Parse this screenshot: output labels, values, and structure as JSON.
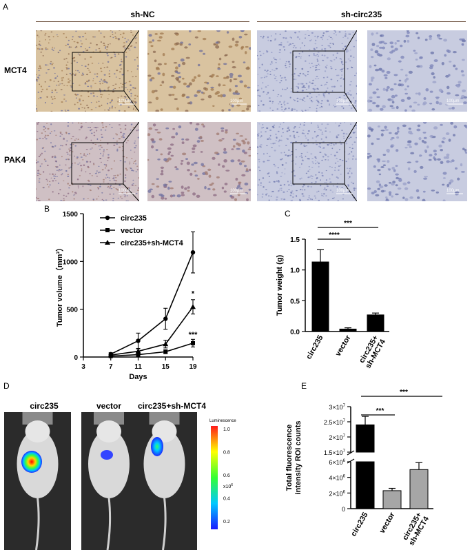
{
  "panel_a": {
    "letter": "A",
    "groups": [
      "sh-NC",
      "sh-circ235"
    ],
    "rows": [
      "MCT4",
      "PAK4"
    ],
    "scale_label": "100µm"
  },
  "panel_b": {
    "letter": "B"
  },
  "panel_c": {
    "letter": "C"
  },
  "panel_d": {
    "letter": "D",
    "mice": [
      "circ235",
      "vector",
      "circ235+sh-MCT4"
    ],
    "colorbar_title": "Luminescence",
    "colorbar_ticks": [
      "1.0",
      "0.8",
      "0.6",
      "0.4",
      "0.2"
    ],
    "colorbar_unit": "x10",
    "colorbar_exp": "6"
  },
  "panel_e": {
    "letter": "E"
  },
  "colors": {
    "black": "#000000",
    "grey": "#a6a6a6",
    "stain_brown": "#b08a5a",
    "stain_blue": "#8a93c2"
  },
  "chart_data": [
    {
      "id": "B",
      "type": "line",
      "xlabel": "Days",
      "ylabel": "Tumor volume（mm³）",
      "xlim": [
        3,
        19
      ],
      "ylim": [
        0,
        1500
      ],
      "xticks": [
        "3",
        "7",
        "11",
        "15",
        "19"
      ],
      "yticks": [
        "0",
        "500",
        "1000",
        "1500"
      ],
      "x": [
        7,
        11,
        15,
        19
      ],
      "series": [
        {
          "name": "circ235",
          "marker": "circle",
          "values": [
            30,
            170,
            400,
            1095
          ],
          "errors": [
            15,
            80,
            110,
            215
          ]
        },
        {
          "name": "vector",
          "marker": "square",
          "values": [
            10,
            25,
            55,
            145
          ],
          "errors": [
            5,
            15,
            20,
            40
          ]
        },
        {
          "name": "circ235+sh-MCT4",
          "marker": "triangle",
          "values": [
            20,
            60,
            135,
            525
          ],
          "errors": [
            8,
            25,
            40,
            75
          ]
        }
      ],
      "annotations": [
        {
          "x": 19,
          "y": 640,
          "text": "*"
        },
        {
          "x": 19,
          "y": 210,
          "text": "***"
        }
      ],
      "legend": "top-left"
    },
    {
      "id": "C",
      "type": "bar",
      "ylabel": "Tumor weight (g)",
      "ylim": [
        0,
        1.5
      ],
      "yticks": [
        "0.0",
        "0.5",
        "1.0",
        "1.5"
      ],
      "categories": [
        "circ235",
        "vector",
        "circ235+\nsh-MCT4"
      ],
      "category_lines": [
        [
          "circ235"
        ],
        [
          "vector"
        ],
        [
          "circ235+",
          "sh-MCT4"
        ]
      ],
      "values": [
        1.13,
        0.04,
        0.27
      ],
      "errors": [
        0.2,
        0.02,
        0.03
      ],
      "colors": [
        "#000000",
        "#000000",
        "#000000"
      ],
      "significance": [
        {
          "from": 0,
          "to": 1,
          "text": "****"
        },
        {
          "from": 0,
          "to": 2,
          "text": "***"
        }
      ]
    },
    {
      "id": "E",
      "type": "bar",
      "ylabel_lines": [
        "Total fluorescence",
        "intensity ROI counts"
      ],
      "broken_axis": true,
      "lower_range": [
        0,
        6000000
      ],
      "upper_range": [
        15000000,
        30000000
      ],
      "lower_ticks": [
        {
          "v": 0,
          "m": "0",
          "e": ""
        },
        {
          "v": 2000000,
          "m": "2×10",
          "e": "6"
        },
        {
          "v": 4000000,
          "m": "4×10",
          "e": "6"
        },
        {
          "v": 6000000,
          "m": "6×10",
          "e": "6"
        }
      ],
      "upper_ticks": [
        {
          "v": 15000000,
          "m": "1.5×10",
          "e": "7"
        },
        {
          "v": 20000000,
          "m": "2×10",
          "e": "7"
        },
        {
          "v": 25000000,
          "m": "2.5×10",
          "e": "7"
        },
        {
          "v": 30000000,
          "m": "3×10",
          "e": "7"
        }
      ],
      "categories": [
        "circ235",
        "vector",
        "circ235+\nsh-MCT4"
      ],
      "category_lines": [
        [
          "circ235"
        ],
        [
          "vector"
        ],
        [
          "circ235+",
          "sh-MCT4"
        ]
      ],
      "values": [
        24000000,
        2300000,
        5000000
      ],
      "errors": [
        2800000,
        300000,
        900000
      ],
      "colors": [
        "#000000",
        "#a6a6a6",
        "#a6a6a6"
      ],
      "significance": [
        {
          "from": 0,
          "to": 1,
          "text": "***"
        },
        {
          "from": 0,
          "to": 2,
          "text": "***"
        }
      ]
    }
  ]
}
